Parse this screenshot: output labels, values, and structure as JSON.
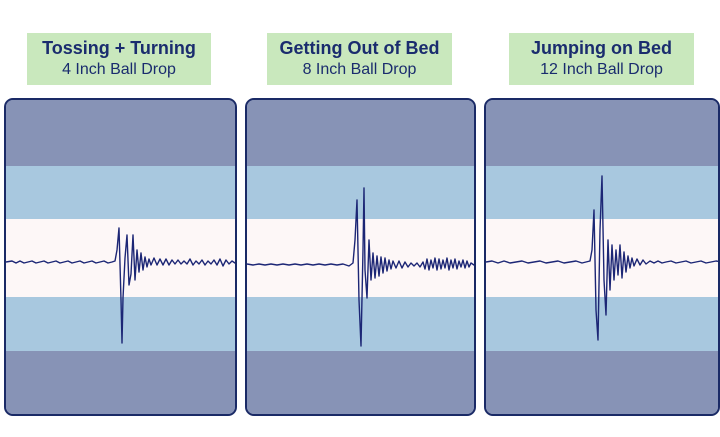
{
  "panels": [
    {
      "title": "Tossing + Turning",
      "subtitle": "4 Inch Ball Drop",
      "wave_color": "#1c2675"
    },
    {
      "title": "Getting Out of Bed",
      "subtitle": "8 Inch Ball Drop",
      "wave_color": "#1c2675"
    },
    {
      "title": "Jumping on Bed",
      "subtitle": "12 Inch Ball Drop",
      "wave_color": "#1c2675"
    }
  ]
}
